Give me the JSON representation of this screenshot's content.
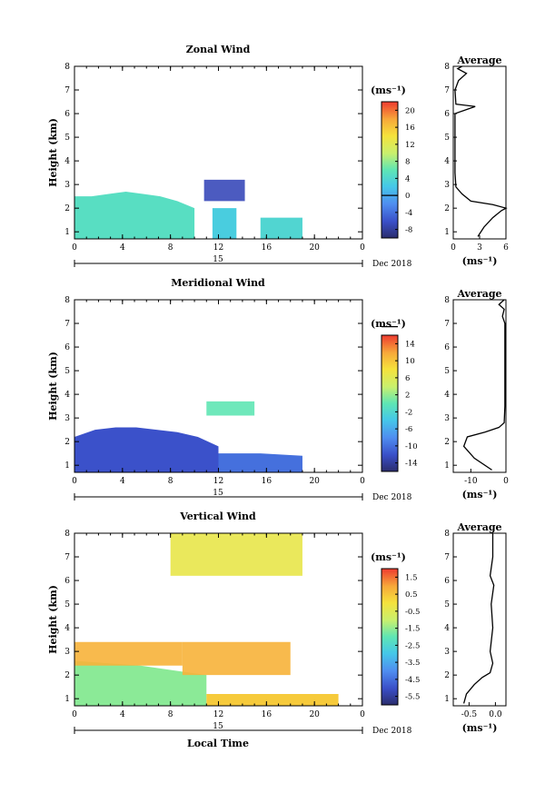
{
  "xlabel": "Local Time",
  "date_label": "Dec 2018",
  "day_label": "15",
  "avg_title": "Average",
  "unit_label": "(ms⁻¹)",
  "chart_data": [
    {
      "type": "heatmap",
      "title": "Zonal Wind",
      "ylabel": "Height (km)",
      "x_ticks": [
        "0",
        "4",
        "8",
        "12",
        "16",
        "20",
        "0"
      ],
      "y_ticks": [
        "1",
        "2",
        "3",
        "4",
        "5",
        "6",
        "7",
        "8"
      ],
      "xlim": [
        0,
        24
      ],
      "ylim": [
        0.7,
        8
      ],
      "colorbar": {
        "min": -8,
        "max": 22,
        "ticks": [
          "20",
          "16",
          "12",
          "8",
          "4",
          "0",
          "-4",
          "-8"
        ],
        "zero_line": 0
      },
      "regions": [
        {
          "x": [
            0,
            10
          ],
          "top": [
            2.5,
            2.5,
            2.6,
            2.7,
            2.6,
            2.5,
            2.3,
            2.0
          ],
          "value": 6
        },
        {
          "x": [
            11.5,
            13.5
          ],
          "top": [
            2.0
          ],
          "value": 4
        },
        {
          "x": [
            15.5,
            19
          ],
          "top": [
            1.6
          ],
          "value": 5
        },
        {
          "x": [
            10.8,
            14.2
          ],
          "band": [
            2.3,
            3.2
          ],
          "value": -5
        }
      ],
      "average": {
        "x": [
          0,
          6
        ],
        "ticks": [
          "0",
          "3",
          "6"
        ],
        "profile": [
          [
            2.8,
            0.8
          ],
          [
            3.5,
            1.2
          ],
          [
            4.5,
            1.6
          ],
          [
            5.5,
            1.9
          ],
          [
            6,
            2.0
          ],
          [
            4.5,
            2.15
          ],
          [
            2,
            2.3
          ],
          [
            1,
            2.6
          ],
          [
            0.3,
            2.9
          ],
          [
            0.2,
            3.5
          ],
          [
            0.2,
            6.0
          ],
          [
            2.5,
            6.3
          ],
          [
            0.3,
            6.4
          ],
          [
            0.2,
            7.0
          ],
          [
            0.6,
            7.4
          ],
          [
            1.5,
            7.7
          ],
          [
            0.5,
            7.9
          ],
          [
            1.0,
            8.0
          ]
        ]
      }
    },
    {
      "type": "heatmap",
      "title": "Meridional Wind",
      "ylabel": "Height (km)",
      "x_ticks": [
        "0",
        "4",
        "8",
        "12",
        "16",
        "20",
        "0"
      ],
      "y_ticks": [
        "1",
        "2",
        "3",
        "4",
        "5",
        "6",
        "7",
        "8"
      ],
      "xlim": [
        0,
        24
      ],
      "ylim": [
        0.7,
        8
      ],
      "colorbar": {
        "min": -16,
        "max": 16,
        "ticks": [
          "14",
          "10",
          "6",
          "2",
          "-2",
          "-6",
          "-10",
          "-14"
        ],
        "zero_line": 0
      },
      "regions": [
        {
          "x": [
            0,
            12
          ],
          "top": [
            2.2,
            2.5,
            2.6,
            2.6,
            2.5,
            2.4,
            2.2,
            1.8
          ],
          "value": -12
        },
        {
          "x": [
            12,
            19
          ],
          "top": [
            1.5,
            1.5,
            1.4
          ],
          "value": -10
        },
        {
          "x": [
            11,
            15
          ],
          "band": [
            3.1,
            3.7
          ],
          "value": 0
        }
      ],
      "average": {
        "x": [
          -15,
          0
        ],
        "ticks": [
          "-10",
          "0"
        ],
        "profile": [
          [
            -4,
            0.8
          ],
          [
            -9,
            1.3
          ],
          [
            -12,
            1.8
          ],
          [
            -11,
            2.2
          ],
          [
            -6,
            2.4
          ],
          [
            -2,
            2.6
          ],
          [
            -0.5,
            2.8
          ],
          [
            -0.3,
            3.5
          ],
          [
            -0.3,
            7.0
          ],
          [
            -1,
            7.3
          ],
          [
            -0.5,
            7.6
          ],
          [
            -2,
            7.8
          ],
          [
            -0.5,
            8.0
          ]
        ]
      }
    },
    {
      "type": "heatmap",
      "title": "Vertical Wind",
      "ylabel": "Height (km)",
      "x_ticks": [
        "0",
        "4",
        "8",
        "12",
        "16",
        "20",
        "0"
      ],
      "y_ticks": [
        "1",
        "2",
        "3",
        "4",
        "5",
        "6",
        "7",
        "8"
      ],
      "xlim": [
        0,
        24
      ],
      "ylim": [
        0.7,
        8
      ],
      "colorbar": {
        "min": -6,
        "max": 2,
        "ticks": [
          "1.5",
          "0.5",
          "-0.5",
          "-1.5",
          "-2.5",
          "-3.5",
          "-4.5",
          "-5.5"
        ],
        "zero_line": null
      },
      "regions": [
        {
          "x": [
            0,
            11
          ],
          "top": [
            2.6,
            2.5,
            2.4,
            2.2,
            2.0
          ],
          "value": -1.6
        },
        {
          "x": [
            11,
            22
          ],
          "top": [
            1.2,
            1.2
          ],
          "value": 0.4
        },
        {
          "x": [
            0,
            9
          ],
          "band": [
            2.4,
            3.4
          ],
          "value": 0.8
        },
        {
          "x": [
            9,
            18
          ],
          "band": [
            2.0,
            3.4
          ],
          "value": 0.8
        },
        {
          "x": [
            8,
            19
          ],
          "band": [
            6.2,
            8.0
          ],
          "value": -0.3
        }
      ],
      "average": {
        "x": [
          -0.8,
          0.2
        ],
        "ticks": [
          "-0.5",
          "0.0"
        ],
        "profile": [
          [
            -0.6,
            0.8
          ],
          [
            -0.55,
            1.2
          ],
          [
            -0.4,
            1.6
          ],
          [
            -0.25,
            1.9
          ],
          [
            -0.1,
            2.1
          ],
          [
            -0.05,
            2.5
          ],
          [
            -0.1,
            3.0
          ],
          [
            -0.05,
            4.0
          ],
          [
            -0.08,
            5.0
          ],
          [
            -0.03,
            5.8
          ],
          [
            -0.1,
            6.2
          ],
          [
            -0.05,
            7.0
          ],
          [
            -0.05,
            8.0
          ]
        ]
      }
    }
  ]
}
